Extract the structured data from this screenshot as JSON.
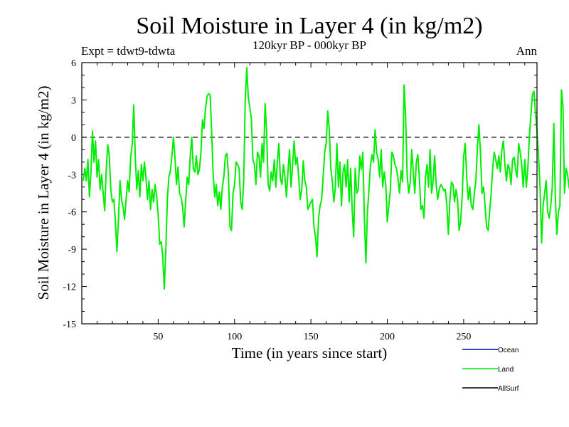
{
  "chart_data": {
    "type": "line",
    "title": "Soil Moisture in Layer 4 (in kg/m2)",
    "subtitle": "120kyr BP - 000kyr BP",
    "experiment_label": "Expt = tdwt9-tdwta",
    "season_label": "Ann",
    "xlabel": "Time (in years since start)",
    "ylabel": "Soil Moisture in Layer 4 (in kg/m2)",
    "xlim": [
      0,
      298
    ],
    "ylim": [
      -15,
      6
    ],
    "xticks": [
      50,
      100,
      150,
      200,
      250
    ],
    "yticks": [
      -15,
      -12,
      -9,
      -6,
      -3,
      0,
      3,
      6
    ],
    "zero_line": 0,
    "legend": [
      {
        "name": "Ocean",
        "color": "#0000cc"
      },
      {
        "name": "Land",
        "color": "#00ee00"
      },
      {
        "name": "AllSurf",
        "color": "#000000"
      }
    ],
    "series": [
      {
        "name": "Land",
        "color": "#00ee00",
        "x_start": 1,
        "x_step": 1,
        "values": [
          -3.5,
          -2.5,
          -3.5,
          -1.8,
          -4.8,
          -2.8,
          0.5,
          -2.0,
          -0.3,
          -3.2,
          -1.8,
          -4.2,
          -3.0,
          -4.5,
          -5.9,
          -2.6,
          -0.6,
          -1.5,
          -4.2,
          -5.2,
          -5.0,
          -6.8,
          -9.2,
          -6.6,
          -3.5,
          -5.0,
          -5.6,
          -6.6,
          -5.0,
          -3.5,
          -4.4,
          -1.6,
          -0.6,
          2.6,
          -1.5,
          -4.2,
          -2.7,
          -4.8,
          -2.2,
          -3.5,
          -2.0,
          -3.2,
          -5.0,
          -3.5,
          -5.8,
          -4.2,
          -5.2,
          -3.8,
          -4.7,
          -6.2,
          -8.6,
          -8.4,
          -9.6,
          -12.2,
          -9.1,
          -5.0,
          -3.2,
          -2.7,
          -1.5,
          0.0,
          -1.6,
          -3.8,
          -2.4,
          -4.5,
          -4.8,
          -5.6,
          -7.2,
          -5.2,
          -3.2,
          -3.8,
          -1.5,
          0.0,
          -2.5,
          -2.8,
          -1.5,
          -3.0,
          -2.6,
          -1.2,
          1.4,
          0.7,
          2.3,
          3.3,
          3.5,
          3.4,
          0.5,
          -3.0,
          -4.8,
          -3.8,
          -5.5,
          -4.4,
          -5.8,
          -4.0,
          -3.2,
          -1.5,
          -1.3,
          -3.0,
          -7.2,
          -7.5,
          -4.5,
          -3.8,
          -2.0,
          -2.2,
          -2.5,
          -5.2,
          -5.8,
          -3.5,
          3.0,
          5.6,
          3.2,
          2.4,
          1.5,
          -1.8,
          -2.2,
          -3.8,
          -1.2,
          -1.5,
          -3.2,
          -0.5,
          -2.0,
          2.7,
          0.4,
          -3.8,
          -4.3,
          -2.8,
          -3.5,
          -1.8,
          -4.0,
          -2.0,
          -0.5,
          -3.3,
          -3.8,
          -2.2,
          -3.2,
          -4.8,
          -2.7,
          -1.0,
          -4.0,
          -2.2,
          -0.3,
          -2.2,
          -1.6,
          -3.2,
          -5.0,
          -4.2,
          -1.9,
          -3.5,
          -4.0,
          -5.8,
          -5.5,
          -5.2,
          -5.0,
          -7.2,
          -8.0,
          -9.6,
          -6.5,
          -5.5,
          -5.0,
          -3.2,
          -1.2,
          -0.5,
          2.1,
          0.7,
          -2.5,
          -3.5,
          -5.2,
          -4.0,
          -0.5,
          -4.0,
          -2.0,
          -5.5,
          -2.8,
          -2.2,
          -4.0,
          -1.8,
          -5.2,
          -2.5,
          -5.8,
          -8.0,
          -2.5,
          -4.5,
          -4.2,
          -1.5,
          -2.6,
          -1.2,
          -6.5,
          -10.1,
          -6.0,
          -4.2,
          -2.2,
          -1.4,
          -2.0,
          0.6,
          -1.2,
          -1.8,
          -3.2,
          -1.0,
          -4.0,
          -2.8,
          -3.8,
          -6.8,
          -5.5,
          -4.2,
          -1.2,
          -1.5,
          -2.2,
          -2.5,
          -3.3,
          -4.5,
          -2.7,
          -3.6,
          4.2,
          1.6,
          -3.0,
          -4.5,
          -3.6,
          -1.0,
          -2.8,
          -4.5,
          -2.0,
          -1.4,
          -3.3,
          -5.8,
          -5.5,
          -6.5,
          -3.2,
          -2.2,
          -4.0,
          -1.0,
          -4.5,
          -3.5,
          -1.5,
          -3.8,
          -5.0,
          -4.2,
          -3.8,
          -4.0,
          -4.3,
          -4.2,
          -5.5,
          -7.8,
          -5.0,
          -3.6,
          -3.8,
          -5.2,
          -4.2,
          -5.0,
          -7.5,
          -6.8,
          -4.8,
          -1.5,
          -0.5,
          -3.2,
          -5.0,
          -4.0,
          -5.5,
          -5.8,
          -4.5,
          -3.5,
          -0.8,
          1.0,
          -1.2,
          -4.5,
          -4.0,
          -5.5,
          -7.2,
          -7.5,
          -6.0,
          -4.5,
          -2.5,
          -1.2,
          -1.8,
          -2.5,
          -1.5,
          -2.8,
          -1.0,
          -0.3,
          -2.2,
          -3.5,
          -2.2,
          -2.5,
          -3.8,
          -1.8,
          -1.6,
          -2.6,
          -3.2,
          -0.5,
          -1.2,
          -2.2,
          -4.0,
          -1.8,
          -4.0,
          -2.5,
          0.0,
          1.8,
          3.4,
          3.7,
          2.0,
          0.5,
          -1.5,
          -4.0,
          -8.5,
          -5.5,
          -4.5,
          -3.5,
          -6.0,
          -6.5,
          -5.5,
          -4.0,
          1.1,
          -4.8,
          -7.8,
          -6.0,
          -5.5,
          3.8,
          2.5,
          -4.5,
          -2.5,
          -3.0,
          -4.0,
          -4.5,
          -5.8
        ]
      }
    ]
  }
}
